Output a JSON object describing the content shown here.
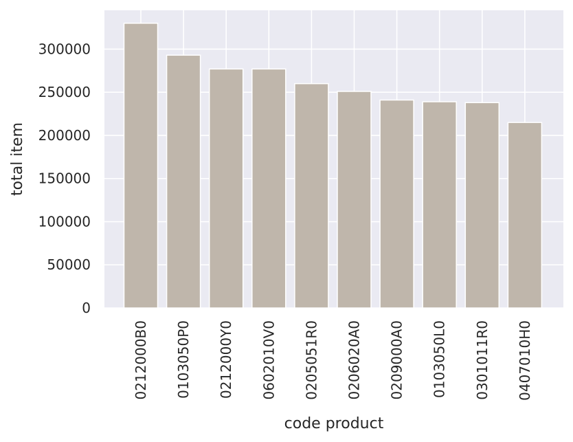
{
  "chart_data": {
    "type": "bar",
    "categories": [
      "0212000B0",
      "0103050P0",
      "0212000Y0",
      "0602010V0",
      "0205051R0",
      "0206020A0",
      "0209000A0",
      "0103050L0",
      "0301011R0",
      "0407010H0"
    ],
    "values": [
      330000,
      293000,
      277000,
      277000,
      260000,
      251000,
      241000,
      239000,
      238000,
      215000
    ],
    "xlabel": "code product",
    "ylabel": "total item",
    "yticks": [
      0,
      50000,
      100000,
      150000,
      200000,
      250000,
      300000
    ],
    "ylim": [
      0,
      345000
    ],
    "grid": true,
    "colors": {
      "bar": "#bfb6ab",
      "background": "#eaeaf2",
      "grid": "#ffffff",
      "text": "#262626"
    }
  }
}
